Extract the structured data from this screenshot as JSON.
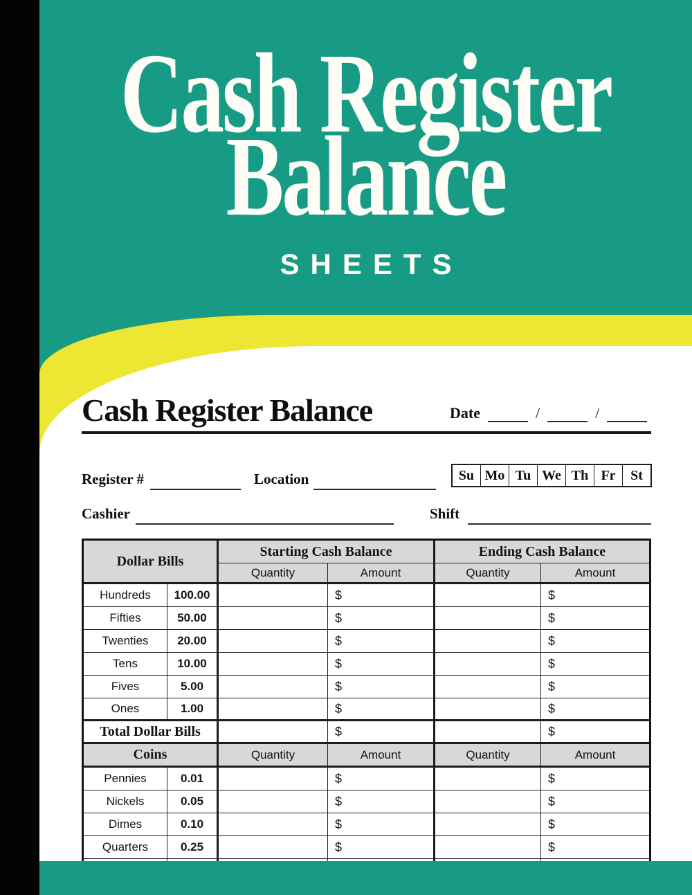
{
  "cover": {
    "title_line1": "Cash Register",
    "title_line2": "Balance",
    "subtitle": "SHEETS",
    "colors": {
      "teal": "#189B85",
      "yellow": "#EDE733",
      "spine_black": "#040404",
      "table_header_gray": "#D8D8D8",
      "text_white": "#FDFDF6",
      "text_black": "#141414"
    }
  },
  "form": {
    "heading": "Cash Register Balance",
    "date_label": "Date",
    "date_separator": "/",
    "register_label": "Register #",
    "location_label": "Location",
    "cashier_label": "Cashier",
    "shift_label": "Shift",
    "days": [
      "Su",
      "Mo",
      "Tu",
      "We",
      "Th",
      "Fr",
      "St"
    ]
  },
  "table": {
    "currency": "$",
    "sections": {
      "bills_header": "Dollar Bills",
      "starting_header": "Starting Cash Balance",
      "ending_header": "Ending Cash Balance",
      "quantity_label": "Quantity",
      "amount_label": "Amount",
      "total_label": "Total Dollar Bills",
      "coins_header": "Coins"
    },
    "bill_rows": [
      {
        "label": "Hundreds",
        "value": "100.00"
      },
      {
        "label": "Fifties",
        "value": "50.00"
      },
      {
        "label": "Twenties",
        "value": "20.00"
      },
      {
        "label": "Tens",
        "value": "10.00"
      },
      {
        "label": "Fives",
        "value": "5.00"
      },
      {
        "label": "Ones",
        "value": "1.00"
      }
    ],
    "coin_rows": [
      {
        "label": "Pennies",
        "value": "0.01"
      },
      {
        "label": "Nickels",
        "value": "0.05"
      },
      {
        "label": "Dimes",
        "value": "0.10"
      },
      {
        "label": "Quarters",
        "value": "0.25"
      }
    ]
  }
}
